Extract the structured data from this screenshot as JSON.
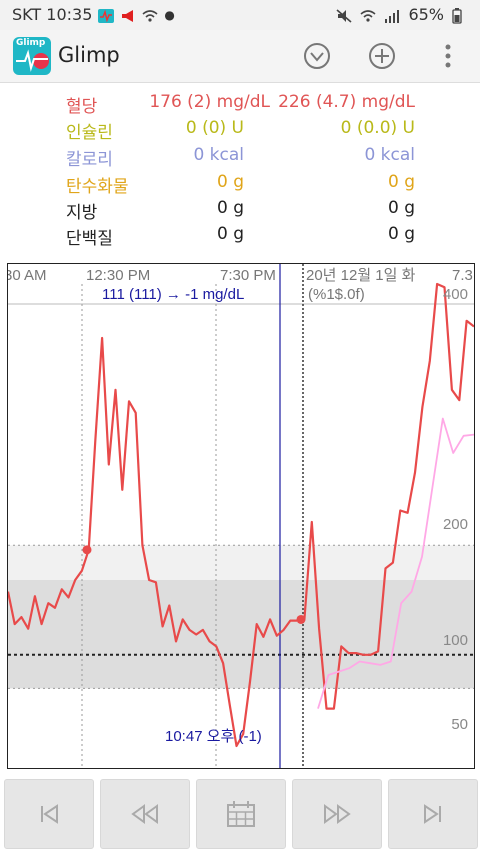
{
  "status_bar": {
    "carrier_time": "SKT 10:35",
    "battery": "65%"
  },
  "app": {
    "title": "Glimp",
    "icon_label": "Glimp"
  },
  "summary": {
    "rows": [
      {
        "label": "혈당",
        "v1": "176 (2) mg/dL",
        "v2": "226 (4.7) mg/dL",
        "color": "#e05555"
      },
      {
        "label": "인슐린",
        "v1": "0 (0) U",
        "v2": "0 (0.0) U",
        "color": "#b9b91a"
      },
      {
        "label": "칼로리",
        "v1": "0 kcal",
        "v2": "0 kcal",
        "color": "#8c95d6"
      },
      {
        "label": "탄수화물",
        "v1": "0 g",
        "v2": "0 g",
        "color": "#e0a51a"
      },
      {
        "label": "지방",
        "v1": "0 g",
        "v2": "0 g",
        "color": "#222222"
      },
      {
        "label": "단백질",
        "v1": "0 g",
        "v2": "0 g",
        "color": "#222222"
      }
    ]
  },
  "chart": {
    "time_labels": [
      "30 AM",
      "12:30 PM",
      "7:30 PM",
      "20년 12월 1일 화",
      "7.3"
    ],
    "cursor_reading": "111 (111) → -1 mg/dL",
    "format_text": "(%1$.0f)",
    "bottom_reading": "10:47 오후 (-1)"
  },
  "chart_data": {
    "type": "line",
    "yticks": [
      50,
      100,
      200,
      400
    ],
    "series": [
      {
        "color": "#e84a4a",
        "values": [
          140,
          112,
          118,
          108,
          136,
          112,
          130,
          126,
          142,
          135,
          150,
          158,
          176,
          272,
          360,
          250,
          315,
          228,
          305,
          295,
          180,
          150,
          148,
          110,
          128,
          98,
          116,
          107,
          103,
          107,
          98,
          95,
          85,
          60,
          40,
          45,
          74,
          112,
          101,
          116,
          102,
          107,
          115,
          115
        ]
      },
      {
        "color": "#e84a4a",
        "values": [
          116,
          116,
          200,
          108,
          58,
          58,
          95,
          91,
          91,
          90,
          90,
          92,
          160,
          165,
          210,
          208,
          243,
          300,
          340,
          410,
          406,
          315,
          306,
          375,
          370
        ]
      },
      {
        "color": "#ffa8e6",
        "values": [
          58,
          78,
          80,
          82,
          86,
          85,
          84,
          86,
          130,
          140,
          170,
          230,
          290,
          260,
          275,
          276
        ]
      }
    ],
    "highlight_points": [
      176,
      116
    ]
  }
}
